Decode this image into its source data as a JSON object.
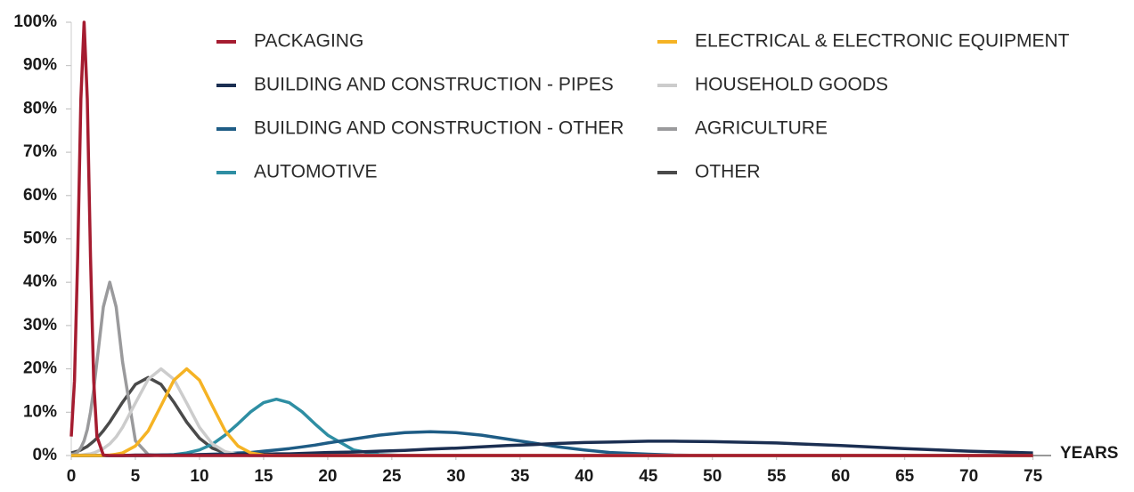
{
  "chart_data": {
    "type": "line",
    "x_label": "YEARS",
    "x": [
      0,
      0.25,
      0.5,
      0.75,
      1,
      1.25,
      1.5,
      1.75,
      2,
      2.5,
      3,
      3.5,
      4,
      5,
      6,
      7,
      8,
      9,
      10,
      11,
      12,
      13,
      14,
      15,
      16,
      17,
      18,
      19,
      20,
      22,
      24,
      26,
      28,
      30,
      32,
      34,
      36,
      38,
      40,
      42,
      45,
      47,
      50,
      55,
      60,
      65,
      70,
      75
    ],
    "xlim": [
      0,
      76
    ],
    "xticks": [
      0,
      5,
      10,
      15,
      20,
      25,
      30,
      35,
      40,
      45,
      50,
      55,
      60,
      65,
      70,
      75
    ],
    "ylim": [
      0,
      100
    ],
    "yticks": [
      {
        "value": 0,
        "label": "0%"
      },
      {
        "value": 10,
        "label": "10%"
      },
      {
        "value": 20,
        "label": "20%"
      },
      {
        "value": 30,
        "label": "30%"
      },
      {
        "value": 40,
        "label": "40%"
      },
      {
        "value": 50,
        "label": "50%"
      },
      {
        "value": 60,
        "label": "60%"
      },
      {
        "value": 70,
        "label": "70%"
      },
      {
        "value": 80,
        "label": "80%"
      },
      {
        "value": 90,
        "label": "90%"
      },
      {
        "value": 100,
        "label": "100%"
      }
    ],
    "series": [
      {
        "name": "PACKAGING",
        "color": "#a51c30",
        "values": [
          4.4,
          17.2,
          45.8,
          82.3,
          100,
          82.3,
          45.8,
          17.2,
          4.4,
          0.1,
          0,
          0,
          0,
          0,
          0,
          0,
          0,
          0,
          0,
          0,
          0,
          0,
          0,
          0,
          0,
          0,
          0,
          0,
          0,
          0,
          0,
          0,
          0,
          0,
          0,
          0,
          0,
          0,
          0,
          0,
          0,
          0,
          0,
          0,
          0,
          0,
          0,
          0
        ]
      },
      {
        "name": "ELECTRICAL & ELECTRONIC EQUIPMENT",
        "color": "#f5b324",
        "values": [
          0,
          0,
          0,
          0,
          0,
          0,
          0,
          0,
          0,
          0,
          0.1,
          0.3,
          0.6,
          2.2,
          5.7,
          11.5,
          17.4,
          20,
          17.4,
          11.5,
          5.7,
          2.2,
          0.6,
          0.1,
          0,
          0,
          0,
          0,
          0,
          0,
          0,
          0,
          0,
          0,
          0,
          0,
          0,
          0,
          0,
          0,
          0,
          0,
          0,
          0,
          0,
          0,
          0,
          0
        ]
      },
      {
        "name": "BUILDING AND CONSTRUCTION - PIPES",
        "color": "#1b2f52",
        "values": [
          0,
          0,
          0,
          0,
          0,
          0,
          0,
          0,
          0,
          0,
          0,
          0,
          0,
          0.1,
          0.1,
          0.1,
          0.1,
          0.1,
          0.2,
          0.2,
          0.2,
          0.3,
          0.3,
          0.3,
          0.4,
          0.4,
          0.5,
          0.6,
          0.7,
          0.8,
          1.0,
          1.2,
          1.5,
          1.7,
          2.0,
          2.3,
          2.5,
          2.8,
          3.0,
          3.1,
          3.3,
          3.3,
          3.2,
          2.9,
          2.3,
          1.6,
          1.0,
          0.6
        ]
      },
      {
        "name": "HOUSEHOLD GOODS",
        "color": "#cccccc",
        "values": [
          0,
          0,
          0.1,
          0.1,
          0.2,
          0.3,
          0.4,
          0.6,
          0.9,
          1.6,
          2.7,
          4.3,
          6.5,
          12.1,
          17.6,
          20,
          17.6,
          12.1,
          6.5,
          2.7,
          0.9,
          0.2,
          0,
          0,
          0,
          0,
          0,
          0,
          0,
          0,
          0,
          0,
          0,
          0,
          0,
          0,
          0,
          0,
          0,
          0,
          0,
          0,
          0,
          0,
          0,
          0,
          0,
          0
        ]
      },
      {
        "name": "BUILDING AND CONSTRUCTION - OTHER",
        "color": "#1e5c85",
        "values": [
          0,
          0,
          0,
          0,
          0,
          0,
          0,
          0,
          0,
          0,
          0,
          0,
          0,
          0,
          0,
          0.1,
          0.1,
          0.1,
          0.2,
          0.3,
          0.4,
          0.6,
          0.7,
          1.0,
          1.3,
          1.6,
          2.0,
          2.4,
          2.9,
          3.8,
          4.7,
          5.3,
          5.5,
          5.3,
          4.7,
          3.8,
          2.9,
          2.0,
          1.3,
          0.7,
          0.3,
          0.1,
          0,
          0,
          0,
          0,
          0,
          0
        ]
      },
      {
        "name": "AGRICULTURE",
        "color": "#9a9a9c",
        "values": [
          0.2,
          0.4,
          0.8,
          1.8,
          3.4,
          6.0,
          10.0,
          15.2,
          21.6,
          34.3,
          40,
          34.3,
          21.6,
          3.4,
          0.2,
          0,
          0,
          0,
          0,
          0,
          0,
          0,
          0,
          0,
          0,
          0,
          0,
          0,
          0,
          0,
          0,
          0,
          0,
          0,
          0,
          0,
          0,
          0,
          0,
          0,
          0,
          0,
          0,
          0,
          0,
          0,
          0,
          0
        ]
      },
      {
        "name": "AUTOMOTIVE",
        "color": "#2e8ea3",
        "values": [
          0,
          0,
          0,
          0,
          0,
          0,
          0,
          0,
          0,
          0,
          0,
          0,
          0,
          0,
          0,
          0.1,
          0.2,
          0.6,
          1.3,
          2.6,
          4.7,
          7.3,
          10.1,
          12.2,
          13,
          12.2,
          10.1,
          7.3,
          4.7,
          1.3,
          0.2,
          0,
          0,
          0,
          0,
          0,
          0,
          0,
          0,
          0,
          0,
          0,
          0,
          0,
          0,
          0,
          0,
          0
        ]
      },
      {
        "name": "OTHER",
        "color": "#4a4a4a",
        "values": [
          0.6,
          0.8,
          1.0,
          1.3,
          1.7,
          2.1,
          2.7,
          3.3,
          4.0,
          5.7,
          7.7,
          10.0,
          12.3,
          16.4,
          18,
          16.4,
          12.3,
          7.7,
          4.0,
          1.7,
          0.6,
          0.2,
          0,
          0,
          0,
          0,
          0,
          0,
          0,
          0,
          0,
          0,
          0,
          0,
          0,
          0,
          0,
          0,
          0,
          0,
          0,
          0,
          0,
          0,
          0,
          0,
          0,
          0
        ]
      }
    ]
  }
}
